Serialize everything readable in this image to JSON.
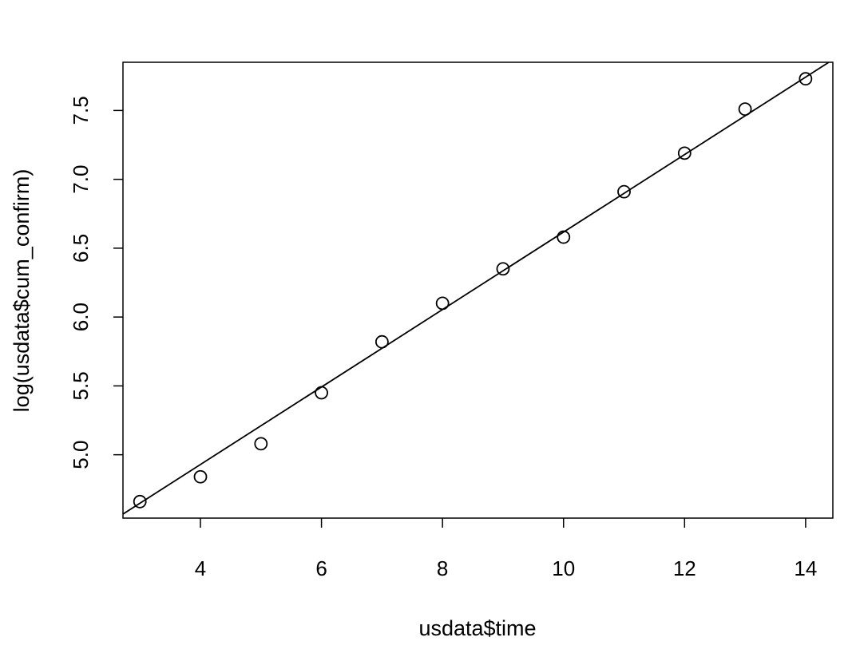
{
  "chart_data": {
    "type": "scatter",
    "title": "",
    "xlabel": "usdata$time",
    "ylabel": "log(usdata$cum_confirm)",
    "xlim": [
      2.72,
      14.45
    ],
    "ylim": [
      4.54,
      7.85
    ],
    "x_ticks": [
      4,
      6,
      8,
      10,
      12,
      14
    ],
    "y_ticks": [
      5.0,
      5.5,
      6.0,
      6.5,
      7.0,
      7.5
    ],
    "x_tick_labels": [
      "4",
      "6",
      "8",
      "10",
      "12",
      "14"
    ],
    "y_tick_labels": [
      "5.0",
      "5.5",
      "6.0",
      "6.5",
      "7.0",
      "7.5"
    ],
    "grid": false,
    "points": {
      "x": [
        3,
        4,
        5,
        6,
        7,
        8,
        9,
        10,
        11,
        12,
        13,
        14
      ],
      "y": [
        4.66,
        4.84,
        5.08,
        5.45,
        5.82,
        6.1,
        6.35,
        6.58,
        6.91,
        7.19,
        7.51,
        7.73
      ]
    },
    "fit_line": {
      "intercept": 3.804,
      "slope": 0.2813
    },
    "colors": {
      "points": "#000000",
      "line": "#000000",
      "axes": "#000000"
    }
  }
}
